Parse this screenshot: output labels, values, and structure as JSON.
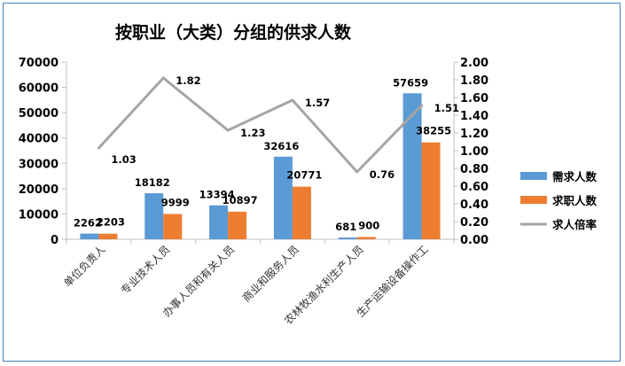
{
  "chart_data": {
    "type": "bar",
    "title": "按职业（大类）分组的供求人数",
    "categories": [
      "单位负责人",
      "专业技术人员",
      "办事人员和有关人员",
      "商业和服务人员",
      "农林牧渔水利生产人员",
      "生产运输设备操作工"
    ],
    "series": [
      {
        "name": "需求人数",
        "type": "bar",
        "axis": "left",
        "color": "#5b9bd5",
        "values": [
          2262,
          18182,
          13394,
          32616,
          681,
          57659
        ]
      },
      {
        "name": "求职人数",
        "type": "bar",
        "axis": "left",
        "color": "#ed7d31",
        "values": [
          2203,
          9999,
          10897,
          20771,
          900,
          38255
        ]
      },
      {
        "name": "求人倍率",
        "type": "line",
        "axis": "right",
        "color": "#a5a5a5",
        "values": [
          1.03,
          1.82,
          1.23,
          1.57,
          0.76,
          1.51
        ]
      }
    ],
    "y_left": {
      "min": 0,
      "max": 70000,
      "ticks": [
        "0",
        "10000",
        "20000",
        "30000",
        "40000",
        "50000",
        "60000",
        "70000"
      ]
    },
    "y_right": {
      "min": 0,
      "max": 2.0,
      "ticks": [
        "0.00",
        "0.20",
        "0.40",
        "0.60",
        "0.80",
        "1.00",
        "1.20",
        "1.40",
        "1.60",
        "1.80",
        "2.00"
      ]
    },
    "data_labels": {
      "bar1": [
        "2262",
        "18182",
        "13394",
        "32616",
        "681",
        "57659"
      ],
      "bar2": [
        "2203",
        "9999",
        "10897",
        "20771",
        "900",
        "38255"
      ],
      "line": [
        "1.03",
        "1.82",
        "1.23",
        "1.57",
        "0.76",
        "1.51"
      ]
    },
    "legend_position": "right",
    "grid": false
  }
}
